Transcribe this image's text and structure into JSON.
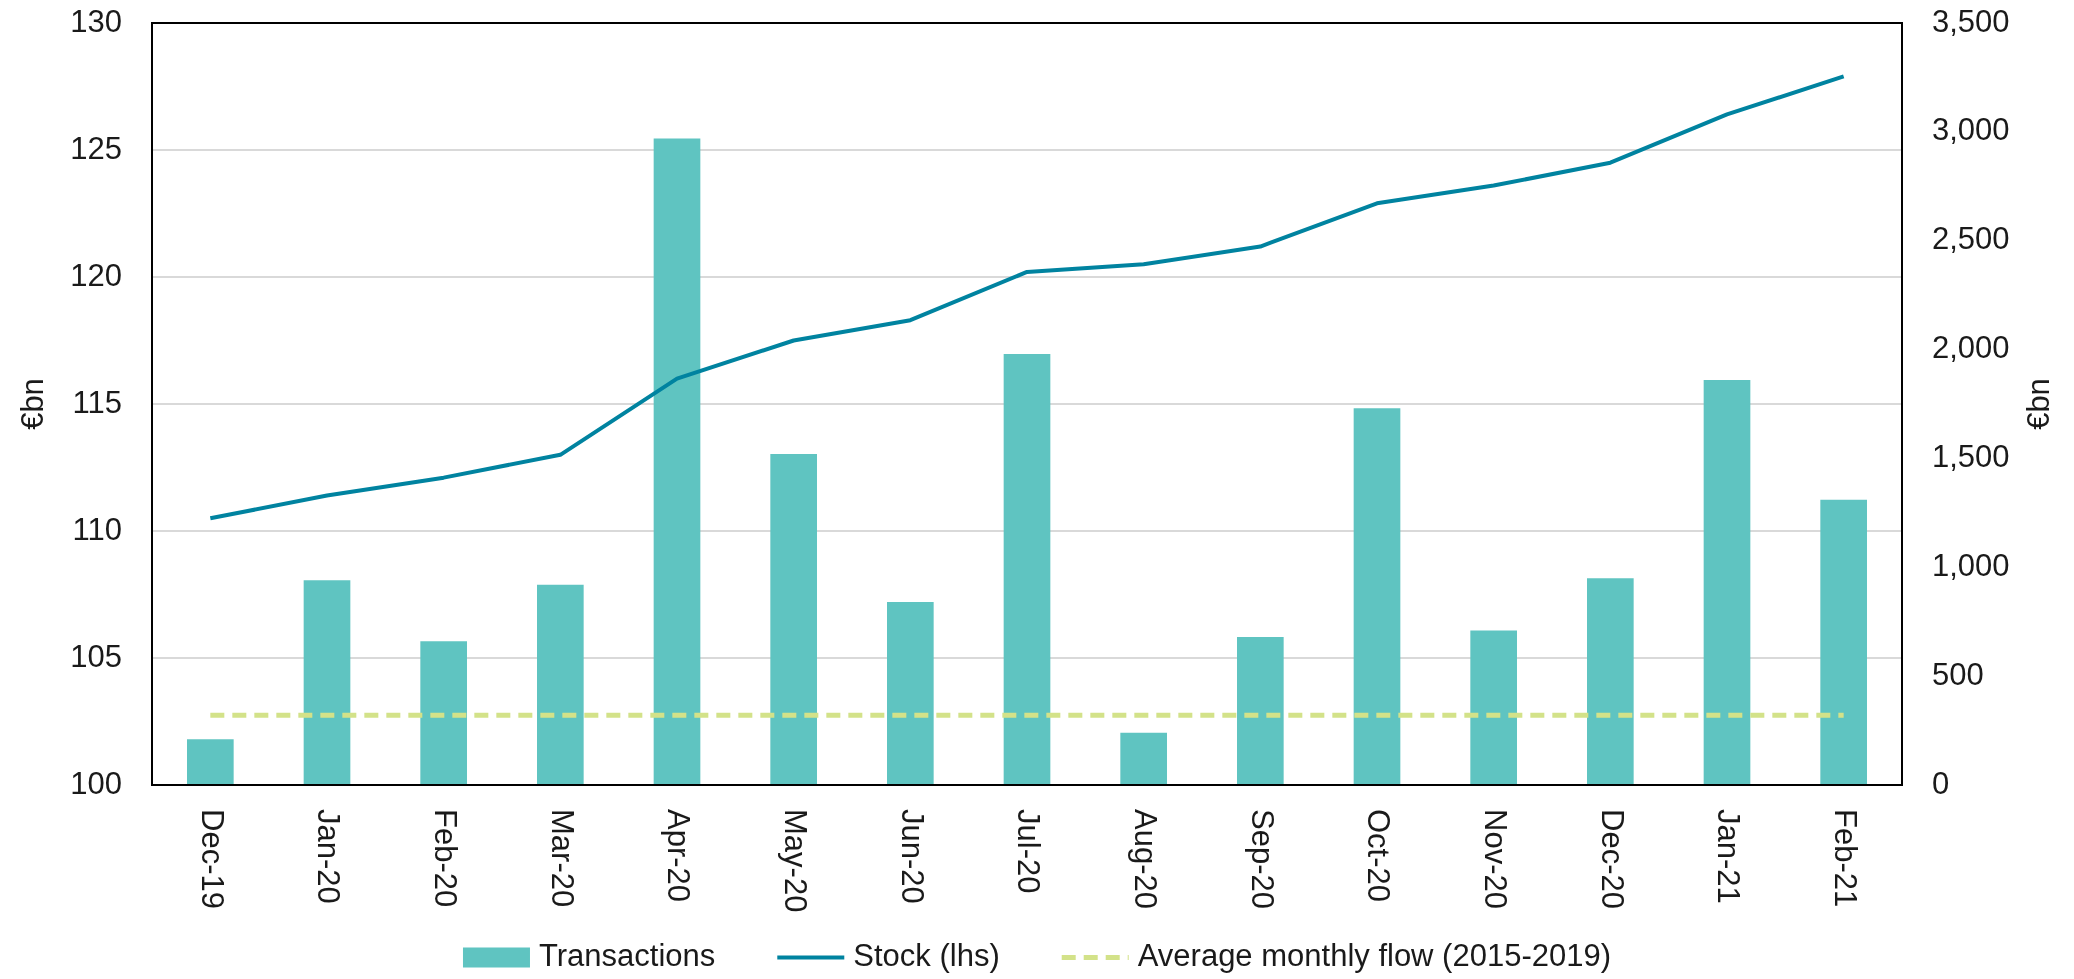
{
  "chart_data": {
    "type": "bar",
    "categories": [
      "Dec-19",
      "Jan-20",
      "Feb-20",
      "Mar-20",
      "Apr-20",
      "May-20",
      "Jun-20",
      "Jul-20",
      "Aug-20",
      "Sep-20",
      "Oct-20",
      "Nov-20",
      "Dec-20",
      "Jan-21",
      "Feb-21"
    ],
    "series": [
      {
        "name": "Transactions",
        "type": "bar",
        "axis": "y2",
        "color": "#5fc4c1",
        "values": [
          210,
          940,
          660,
          920,
          2970,
          1520,
          840,
          1980,
          240,
          680,
          1730,
          710,
          950,
          1860,
          1310
        ]
      },
      {
        "name": "Stock (lhs)",
        "type": "line",
        "color": "#0083a0",
        "values": [
          110.5,
          111.4,
          112.1,
          113.0,
          116.0,
          117.5,
          118.3,
          120.2,
          120.5,
          121.2,
          122.9,
          123.6,
          124.5,
          126.4,
          127.9
        ]
      },
      {
        "name": "Average monthly flow (2015-2019)",
        "type": "line",
        "axis": "y2",
        "color": "#d3e289",
        "line_style": "dashed",
        "values": [
          320,
          320,
          320,
          320,
          320,
          320,
          320,
          320,
          320,
          320,
          320,
          320,
          320,
          320,
          320
        ]
      }
    ],
    "ylabel": "€bn",
    "y2label": "€bn",
    "ylim": [
      100,
      130
    ],
    "yticks": [
      100,
      105,
      110,
      115,
      120,
      125,
      130
    ],
    "y2lim": [
      0,
      3500
    ],
    "y2ticks": [
      0,
      500,
      {
        "value": 1000,
        "label": "1,000"
      },
      {
        "value": 1500,
        "label": "1,500"
      },
      {
        "value": 2000,
        "label": "2,000"
      },
      {
        "value": 2500,
        "label": "2,500"
      },
      {
        "value": 3000,
        "label": "3,000"
      },
      {
        "value": 3500,
        "label": "3,500"
      }
    ],
    "grid": "y",
    "legend": "bottom"
  }
}
